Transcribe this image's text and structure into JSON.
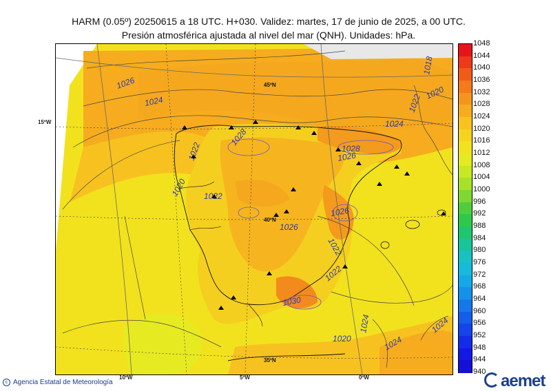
{
  "header": {
    "line1": "HARM (0.05º) 20250615 a 18 UTC. H+030. Validez: martes, 17 de junio de 2025, a 00 UTC.",
    "line2": "Presión atmosférica ajustada al nivel del mar (QNH). Unidades: hPa."
  },
  "map": {
    "isobar_labels": [
      "1026",
      "1024",
      "1022",
      "1020",
      "1028",
      "1026",
      "1022",
      "1030",
      "1022",
      "1020",
      "1024",
      "1024",
      "1022",
      "1020",
      "1024",
      "1026",
      "1028",
      "1026",
      "1024",
      "1022",
      "1018"
    ],
    "lat_labels": [
      "45ºN",
      "40ºN",
      "35ºN",
      "15ºW"
    ],
    "lon_labels": [
      "10ºW",
      "5ºW",
      "0ºW"
    ]
  },
  "colorbar": {
    "ticks": [
      "1048",
      "1044",
      "1040",
      "1036",
      "1032",
      "1028",
      "1024",
      "1020",
      "1016",
      "1012",
      "1008",
      "1004",
      "1000",
      "996",
      "992",
      "988",
      "984",
      "980",
      "976",
      "972",
      "968",
      "964",
      "960",
      "956",
      "952",
      "948",
      "944",
      "940"
    ],
    "colors": [
      "#e8141a",
      "#ee3a18",
      "#f25a1a",
      "#f47a1c",
      "#f5951e",
      "#f6ac1e",
      "#f7c21f",
      "#f5d41f",
      "#f2e21e",
      "#e6ea20",
      "#c9e824",
      "#a6e22a",
      "#7ed833",
      "#4fcd3c",
      "#2ec94a",
      "#1fc66d",
      "#19c498",
      "#18c2c2",
      "#17b9dc",
      "#15a8e8",
      "#1492ea",
      "#1478ea",
      "#145eea",
      "#1444ea",
      "#142bea",
      "#1418e6",
      "#1410d8"
    ]
  },
  "footer": {
    "agency": "Agencia Estatal de Meteorología",
    "logo": "aemet"
  }
}
